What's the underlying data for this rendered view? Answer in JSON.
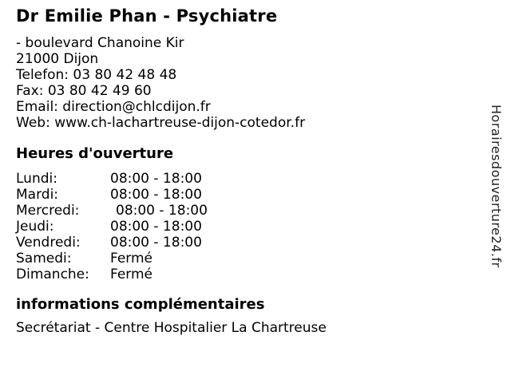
{
  "colors": {
    "background": "#ffffff",
    "text": "#000000",
    "watermark_text": "#222222"
  },
  "header": {
    "title": "Dr Emilie Phan - Psychiatre"
  },
  "contact": {
    "lines": [
      "- boulevard Chanoine Kir",
      "21000 Dijon",
      "Telefon: 03 80 42 48 48",
      "Fax: 03 80 42 49 60",
      "Email: direction@chlcdijon.fr",
      "Web: www.ch-lachartreuse-dijon-cotedor.fr"
    ]
  },
  "hours": {
    "heading": "Heures d'ouverture",
    "rows": [
      {
        "day": "Lundi:",
        "time": "08:00 - 18:00"
      },
      {
        "day": "Mardi:",
        "time": "08:00 - 18:00"
      },
      {
        "day": "Mercredi:",
        "time": "08:00 - 18:00"
      },
      {
        "day": "Jeudi:",
        "time": "08:00 - 18:00"
      },
      {
        "day": "Vendredi:",
        "time": "08:00 - 18:00"
      },
      {
        "day": "Samedi:",
        "time": "Fermé"
      },
      {
        "day": "Dimanche:",
        "time": "Fermé"
      }
    ]
  },
  "info": {
    "heading": "informations complémentaires",
    "text": "Secrétariat - Centre Hospitalier La Chartreuse"
  },
  "watermark": {
    "text": "Horairesdouverture24.fr"
  }
}
